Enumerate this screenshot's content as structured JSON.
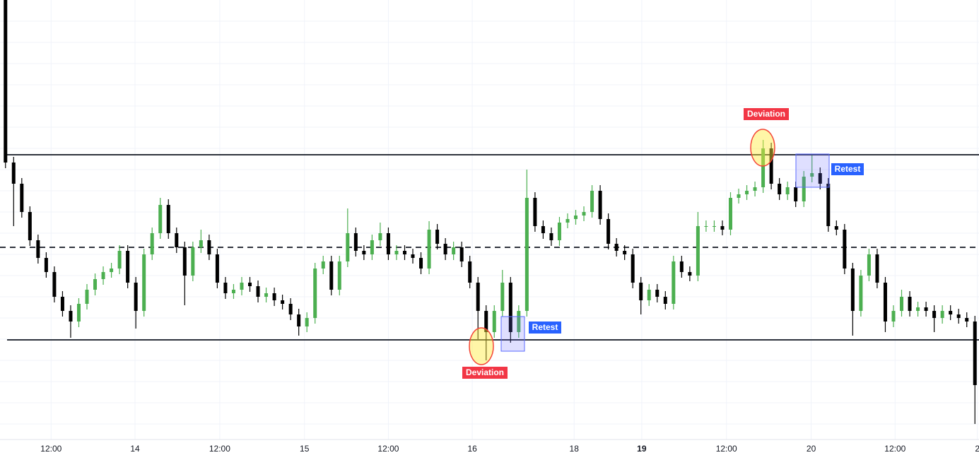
{
  "chart_data": {
    "type": "candlestick",
    "up_color": "#4caf50",
    "down_color": "#000000",
    "xlim": [
      -0.5,
      119.5
    ],
    "ylim": [
      0,
      620
    ],
    "xticks": [
      {
        "value": 5.6,
        "label": "12:00"
      },
      {
        "value": 15.9,
        "label": "14"
      },
      {
        "value": 26.3,
        "label": "12:00"
      },
      {
        "value": 36.7,
        "label": "15"
      },
      {
        "value": 47,
        "label": "12:00"
      },
      {
        "value": 57.3,
        "label": "16"
      },
      {
        "value": 69.8,
        "label": "18"
      },
      {
        "value": 78.1,
        "label": "19",
        "bold": true
      },
      {
        "value": 88.5,
        "label": "12:00"
      },
      {
        "value": 98.9,
        "label": "20"
      },
      {
        "value": 109.2,
        "label": "12:00"
      },
      {
        "value": 119.3,
        "label": "2"
      }
    ],
    "yticks": [
      20,
      50,
      80,
      110,
      140,
      170,
      200,
      230,
      260,
      290,
      320,
      350,
      380,
      410,
      440,
      470,
      500,
      530,
      560,
      590
    ],
    "grid": true,
    "levels": [
      {
        "value": 401,
        "style": "solid"
      },
      {
        "value": 270,
        "style": "dashed"
      },
      {
        "value": 139,
        "style": "solid"
      }
    ],
    "annotations": {
      "deviation": "Deviation",
      "retest": "Retest"
    },
    "ohlc": [
      [
        620,
        620,
        382,
        390
      ],
      [
        390,
        398,
        300,
        360
      ],
      [
        360,
        368,
        312,
        320
      ],
      [
        320,
        328,
        272,
        280
      ],
      [
        280,
        288,
        247,
        255
      ],
      [
        255,
        263,
        227,
        235
      ],
      [
        235,
        243,
        192,
        200
      ],
      [
        200,
        208,
        172,
        180
      ],
      [
        180,
        188,
        142,
        165
      ],
      [
        165,
        198,
        157,
        190
      ],
      [
        190,
        218,
        182,
        210
      ],
      [
        210,
        233,
        202,
        225
      ],
      [
        225,
        243,
        217,
        235
      ],
      [
        235,
        248,
        227,
        240
      ],
      [
        240,
        273,
        232,
        265
      ],
      [
        265,
        273,
        212,
        220
      ],
      [
        220,
        228,
        155,
        180
      ],
      [
        180,
        268,
        172,
        260
      ],
      [
        260,
        298,
        252,
        290
      ],
      [
        290,
        340,
        282,
        330
      ],
      [
        330,
        338,
        282,
        290
      ],
      [
        290,
        298,
        262,
        270
      ],
      [
        270,
        278,
        188,
        230
      ],
      [
        230,
        278,
        222,
        270
      ],
      [
        270,
        295,
        262,
        280
      ],
      [
        280,
        288,
        252,
        260
      ],
      [
        260,
        268,
        212,
        220
      ],
      [
        220,
        228,
        197,
        205
      ],
      [
        205,
        218,
        197,
        210
      ],
      [
        210,
        228,
        202,
        220
      ],
      [
        220,
        228,
        207,
        215
      ],
      [
        215,
        223,
        192,
        200
      ],
      [
        200,
        213,
        192,
        205
      ],
      [
        205,
        213,
        187,
        195
      ],
      [
        195,
        203,
        182,
        190
      ],
      [
        190,
        198,
        167,
        175
      ],
      [
        175,
        183,
        145,
        158
      ],
      [
        158,
        178,
        150,
        170
      ],
      [
        170,
        248,
        162,
        240
      ],
      [
        240,
        258,
        232,
        250
      ],
      [
        250,
        258,
        202,
        210
      ],
      [
        210,
        258,
        202,
        250
      ],
      [
        250,
        325,
        242,
        290
      ],
      [
        290,
        298,
        257,
        265
      ],
      [
        265,
        273,
        252,
        260
      ],
      [
        260,
        288,
        252,
        280
      ],
      [
        280,
        305,
        272,
        290
      ],
      [
        290,
        298,
        252,
        260
      ],
      [
        260,
        273,
        252,
        265
      ],
      [
        265,
        273,
        252,
        260
      ],
      [
        260,
        268,
        247,
        255
      ],
      [
        255,
        263,
        232,
        240
      ],
      [
        240,
        307,
        232,
        295
      ],
      [
        295,
        303,
        267,
        275
      ],
      [
        275,
        283,
        252,
        260
      ],
      [
        260,
        278,
        252,
        270
      ],
      [
        270,
        278,
        242,
        250
      ],
      [
        250,
        258,
        212,
        220
      ],
      [
        220,
        228,
        140,
        180
      ],
      [
        180,
        188,
        110,
        150
      ],
      [
        150,
        188,
        142,
        180
      ],
      [
        180,
        238,
        172,
        220
      ],
      [
        220,
        228,
        135,
        150
      ],
      [
        150,
        188,
        142,
        180
      ],
      [
        180,
        380,
        172,
        340
      ],
      [
        340,
        348,
        292,
        300
      ],
      [
        300,
        308,
        282,
        290
      ],
      [
        290,
        298,
        272,
        280
      ],
      [
        280,
        313,
        272,
        305
      ],
      [
        305,
        318,
        297,
        310
      ],
      [
        310,
        323,
        302,
        315
      ],
      [
        315,
        328,
        307,
        320
      ],
      [
        320,
        358,
        312,
        350
      ],
      [
        350,
        358,
        302,
        310
      ],
      [
        310,
        318,
        267,
        275
      ],
      [
        275,
        283,
        257,
        265
      ],
      [
        265,
        273,
        252,
        260
      ],
      [
        260,
        268,
        212,
        220
      ],
      [
        220,
        228,
        175,
        195
      ],
      [
        195,
        218,
        187,
        210
      ],
      [
        210,
        218,
        192,
        200
      ],
      [
        200,
        208,
        182,
        190
      ],
      [
        190,
        258,
        182,
        250
      ],
      [
        250,
        258,
        227,
        235
      ],
      [
        235,
        243,
        222,
        230
      ],
      [
        230,
        320,
        222,
        300
      ],
      [
        300,
        308,
        292,
        300
      ],
      [
        300,
        308,
        292,
        300
      ],
      [
        300,
        308,
        287,
        295
      ],
      [
        295,
        348,
        287,
        340
      ],
      [
        340,
        353,
        332,
        345
      ],
      [
        345,
        358,
        337,
        350
      ],
      [
        350,
        363,
        342,
        355
      ],
      [
        355,
        422,
        347,
        410
      ],
      [
        410,
        418,
        352,
        360
      ],
      [
        360,
        368,
        337,
        345
      ],
      [
        345,
        363,
        337,
        355
      ],
      [
        355,
        363,
        327,
        335
      ],
      [
        335,
        378,
        327,
        370
      ],
      [
        370,
        400,
        362,
        375
      ],
      [
        375,
        383,
        352,
        360
      ],
      [
        360,
        368,
        292,
        300
      ],
      [
        300,
        308,
        287,
        295
      ],
      [
        295,
        303,
        232,
        240
      ],
      [
        240,
        248,
        145,
        180
      ],
      [
        180,
        238,
        172,
        230
      ],
      [
        230,
        268,
        222,
        260
      ],
      [
        260,
        268,
        212,
        220
      ],
      [
        220,
        228,
        150,
        165
      ],
      [
        165,
        188,
        157,
        180
      ],
      [
        180,
        210,
        172,
        200
      ],
      [
        200,
        208,
        172,
        180
      ],
      [
        180,
        193,
        172,
        185
      ],
      [
        185,
        193,
        172,
        180
      ],
      [
        180,
        188,
        150,
        170
      ],
      [
        170,
        188,
        162,
        180
      ],
      [
        180,
        188,
        167,
        175
      ],
      [
        175,
        183,
        162,
        170
      ],
      [
        170,
        178,
        157,
        165
      ],
      [
        165,
        173,
        20,
        75
      ]
    ]
  }
}
